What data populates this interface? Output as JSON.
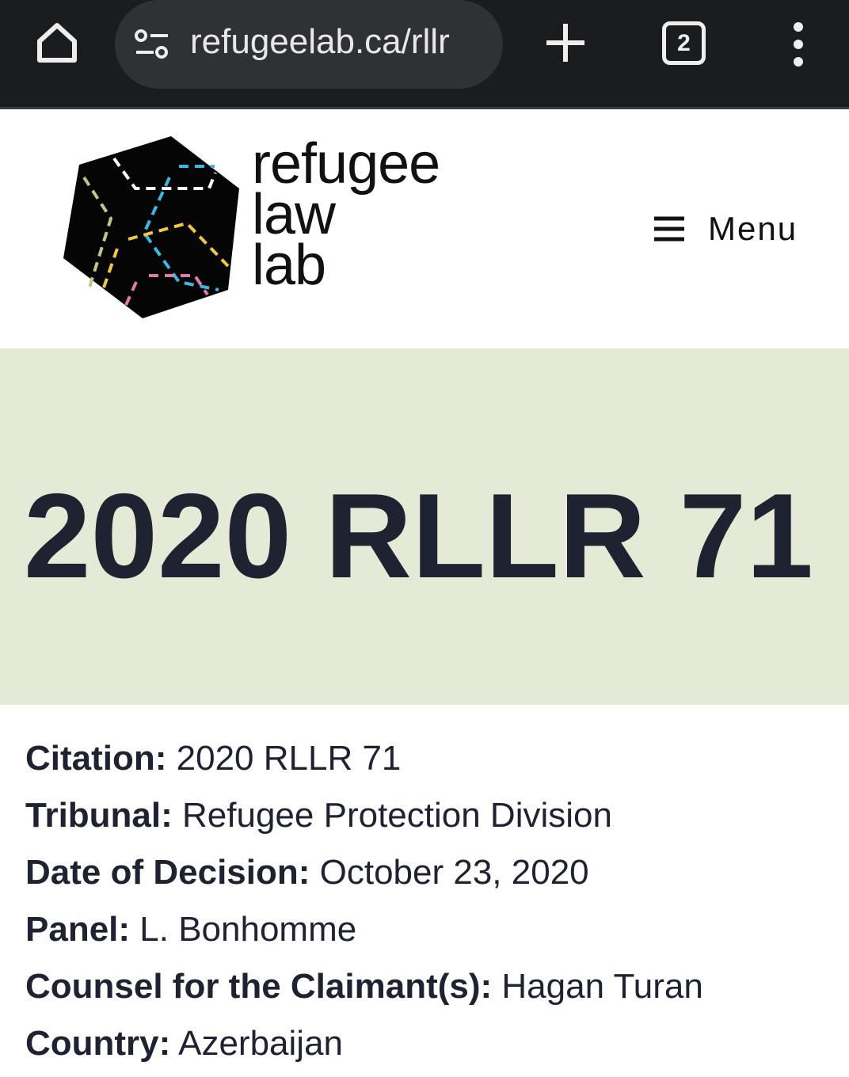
{
  "browser": {
    "url": "refugeelab.ca/rllr",
    "tab_count": "2"
  },
  "site": {
    "wordmark": [
      "refugee",
      "law",
      "lab"
    ],
    "menu_label": "Menu",
    "logo_colors": {
      "white": "#ffffff",
      "blue": "#3fb6e0",
      "yellow": "#f2c744",
      "green": "#b9c98a",
      "pink": "#e07aa8"
    }
  },
  "band_color": "#e5ead6",
  "page_title": "2020 RLLR 71",
  "info": [
    {
      "label": "Citation:",
      "value": "2020 RLLR 71"
    },
    {
      "label": "Tribunal:",
      "value": "Refugee Protection Division"
    },
    {
      "label": "Date of Decision:",
      "value": "October 23, 2020"
    },
    {
      "label": "Panel:",
      "value": "L. Bonhomme"
    },
    {
      "label": "Counsel for the Claimant(s):",
      "value": "Hagan Turan"
    },
    {
      "label": "Country:",
      "value": "Azerbaijan"
    }
  ]
}
